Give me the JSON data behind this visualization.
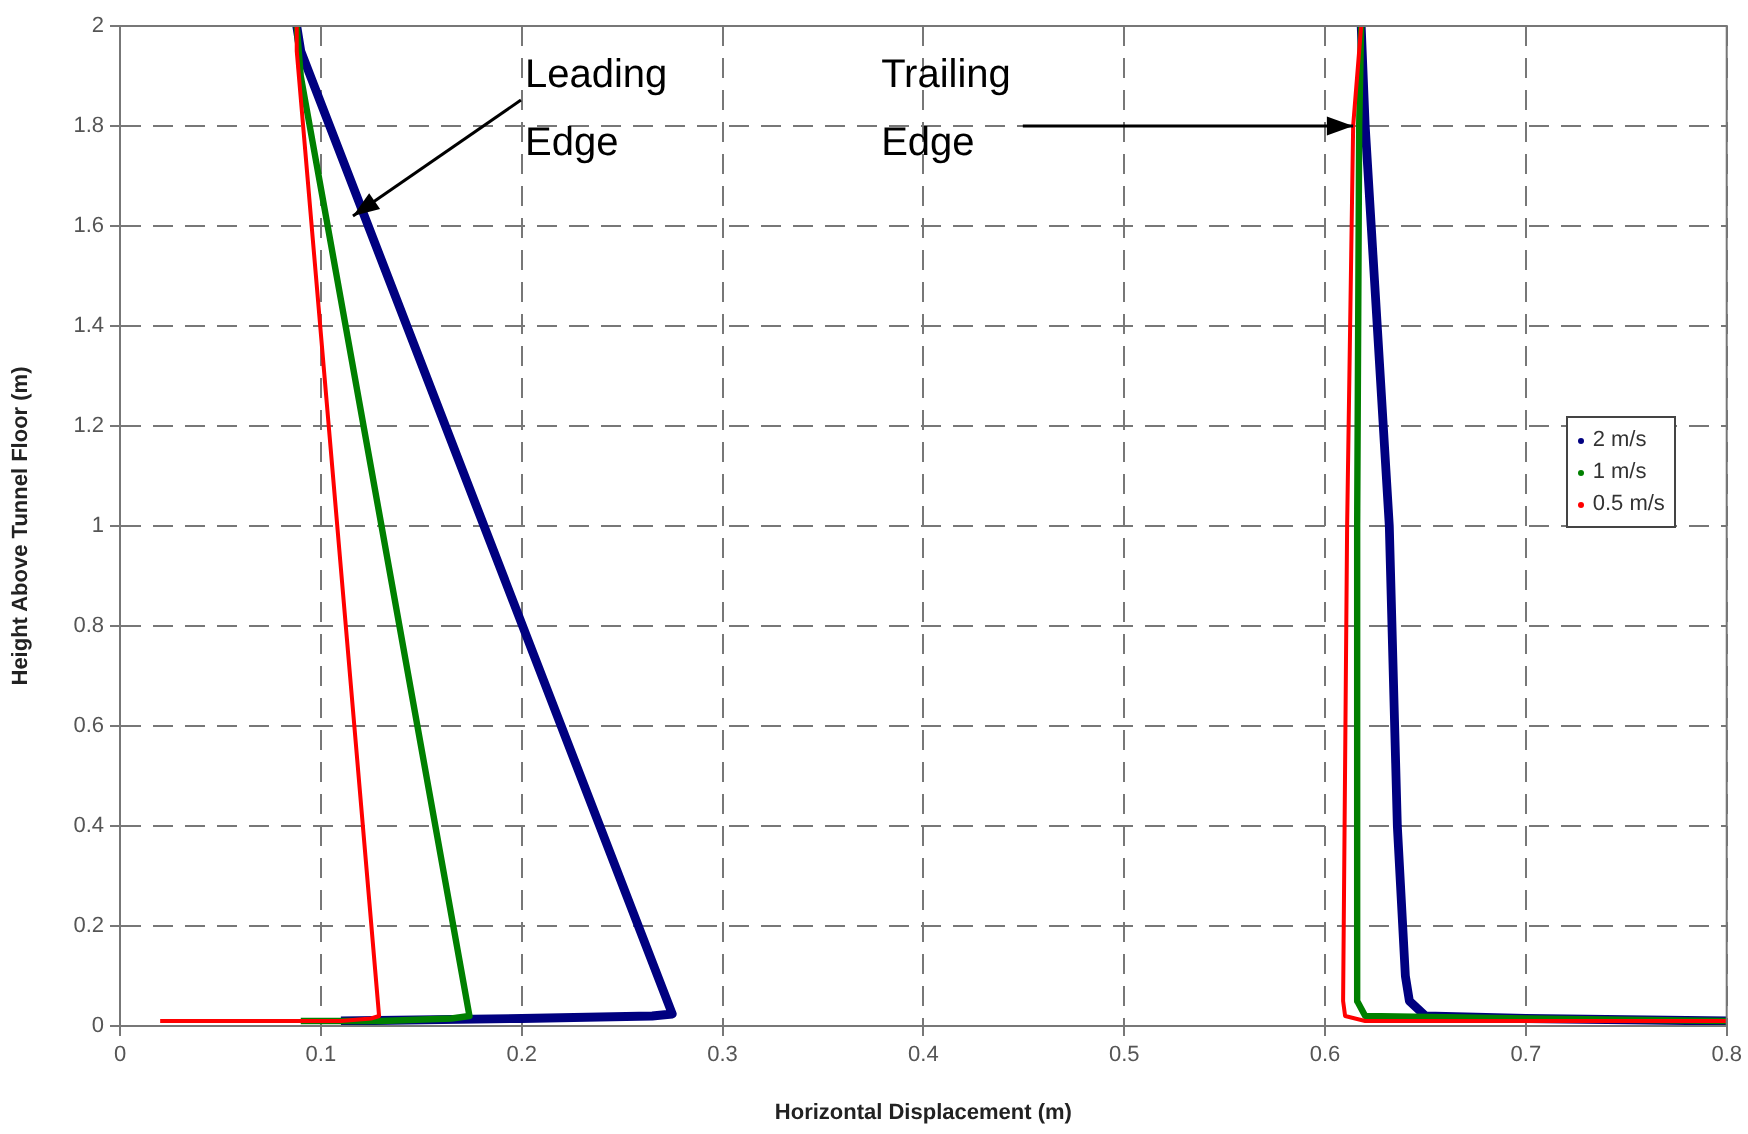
{
  "chart_data": {
    "type": "line",
    "xlabel": "Horizontal Displacement (m)",
    "ylabel": "Height Above Tunnel Floor (m)",
    "xlim": [
      0,
      0.8
    ],
    "xticks": [
      0,
      0.1,
      0.2,
      0.3,
      0.4,
      0.5,
      0.6,
      0.7,
      0.8
    ],
    "ylim": [
      0,
      2
    ],
    "yticks": [
      0,
      0.2,
      0.4,
      0.6,
      0.8,
      1,
      1.2,
      1.4,
      1.6,
      1.8,
      2
    ],
    "grid": true,
    "legend": "right",
    "line_style": "solid",
    "series": [
      {
        "name": "2 m/s",
        "color": "#000080",
        "x": [
          0.11,
          0.2,
          0.265,
          0.275,
          0.09,
          0.088,
          null,
          0.618,
          0.62,
          0.623,
          0.632,
          0.636,
          0.64,
          0.642,
          0.65,
          0.7,
          0.8
        ],
        "values": [
          0.01,
          0.015,
          0.02,
          0.024,
          1.95,
          2,
          null,
          2,
          1.8,
          1.6,
          1,
          0.4,
          0.1,
          0.05,
          0.02,
          0.015,
          0.01
        ]
      },
      {
        "name": "1 m/s",
        "color": "#008000",
        "x": [
          0.09,
          0.13,
          0.165,
          0.174,
          0.09,
          0.088,
          null,
          0.618,
          0.617,
          0.616,
          0.616,
          0.62,
          0.7,
          0.8
        ],
        "values": [
          0.01,
          0.01,
          0.015,
          0.02,
          1.9,
          2,
          null,
          2,
          1.8,
          1,
          0.05,
          0.02,
          0.015,
          0.01
        ]
      },
      {
        "name": "0.5 m/s",
        "color": "#ff0000",
        "x": [
          0.02,
          0.05,
          0.08,
          0.11,
          0.125,
          0.129,
          0.088,
          0.088,
          null,
          0.618,
          0.614,
          0.611,
          0.609,
          0.61,
          0.62,
          0.7,
          0.8
        ],
        "values": [
          0.01,
          0.01,
          0.01,
          0.01,
          0.015,
          0.02,
          1.95,
          2,
          null,
          2,
          1.8,
          1,
          0.05,
          0.02,
          0.01,
          0.01,
          0.01
        ]
      }
    ],
    "annotations": [
      {
        "text": "Leading Edge",
        "x": 0.116,
        "y": 1.62
      },
      {
        "text": "Trailing Edge",
        "x": 0.614,
        "y": 1.8
      }
    ]
  }
}
